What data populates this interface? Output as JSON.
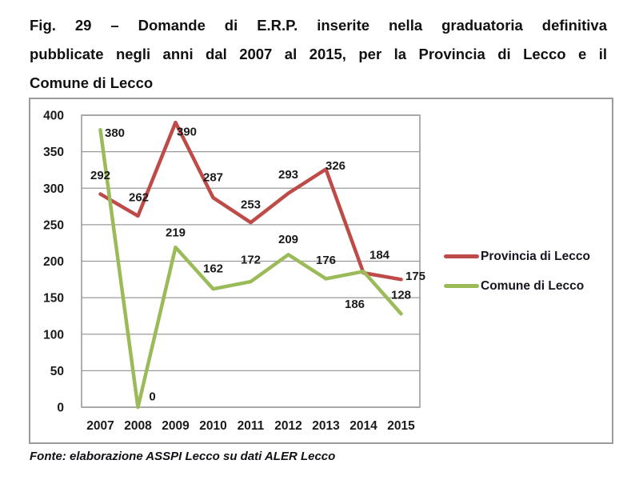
{
  "figure": {
    "title_lines": [
      "Fig. 29 – Domande di E.R.P. inserite nella graduatoria definitiva",
      "pubblicate negli anni dal 2007 al 2015, per la Provincia di Lecco e il",
      "Comune di Lecco"
    ],
    "source_note": "Fonte: elaborazione ASSPI Lecco su dati ALER Lecco"
  },
  "chart_data": {
    "type": "line",
    "title": "",
    "categories": [
      "2007",
      "2008",
      "2009",
      "2010",
      "2011",
      "2012",
      "2013",
      "2014",
      "2015"
    ],
    "series": [
      {
        "name": "Provincia di Lecco",
        "color": "#be4b48",
        "values": [
          292,
          262,
          390,
          287,
          253,
          293,
          326,
          184,
          175
        ]
      },
      {
        "name": "Comune di Lecco",
        "color": "#9bbb59",
        "values": [
          380,
          0,
          219,
          162,
          172,
          209,
          176,
          186,
          128
        ]
      }
    ],
    "xlabel": "",
    "ylabel": "",
    "ylim": [
      0,
      400
    ],
    "yticks": [
      0,
      50,
      100,
      150,
      200,
      250,
      300,
      350,
      400
    ],
    "grid": "horizontal",
    "plot_border": true,
    "legend_position": "right",
    "data_labels": true,
    "label_offsets": [
      [
        [
          0,
          -24
        ],
        [
          1,
          -24
        ],
        [
          14,
          11
        ],
        [
          0,
          -26
        ],
        [
          0,
          -23
        ],
        [
          0,
          -24
        ],
        [
          12,
          -5
        ],
        [
          20,
          -23
        ],
        [
          18,
          -5
        ]
      ],
      [
        [
          18,
          3
        ],
        [
          18,
          -14
        ],
        [
          0,
          -19
        ],
        [
          0,
          -26
        ],
        [
          0,
          -28
        ],
        [
          0,
          -20
        ],
        [
          0,
          -24
        ],
        [
          -11,
          40
        ],
        [
          0,
          -24
        ]
      ]
    ],
    "colors": {
      "grid": "#9b9b9b",
      "plot_border": "#9b9b9b",
      "text": "#1a1a1a"
    }
  }
}
